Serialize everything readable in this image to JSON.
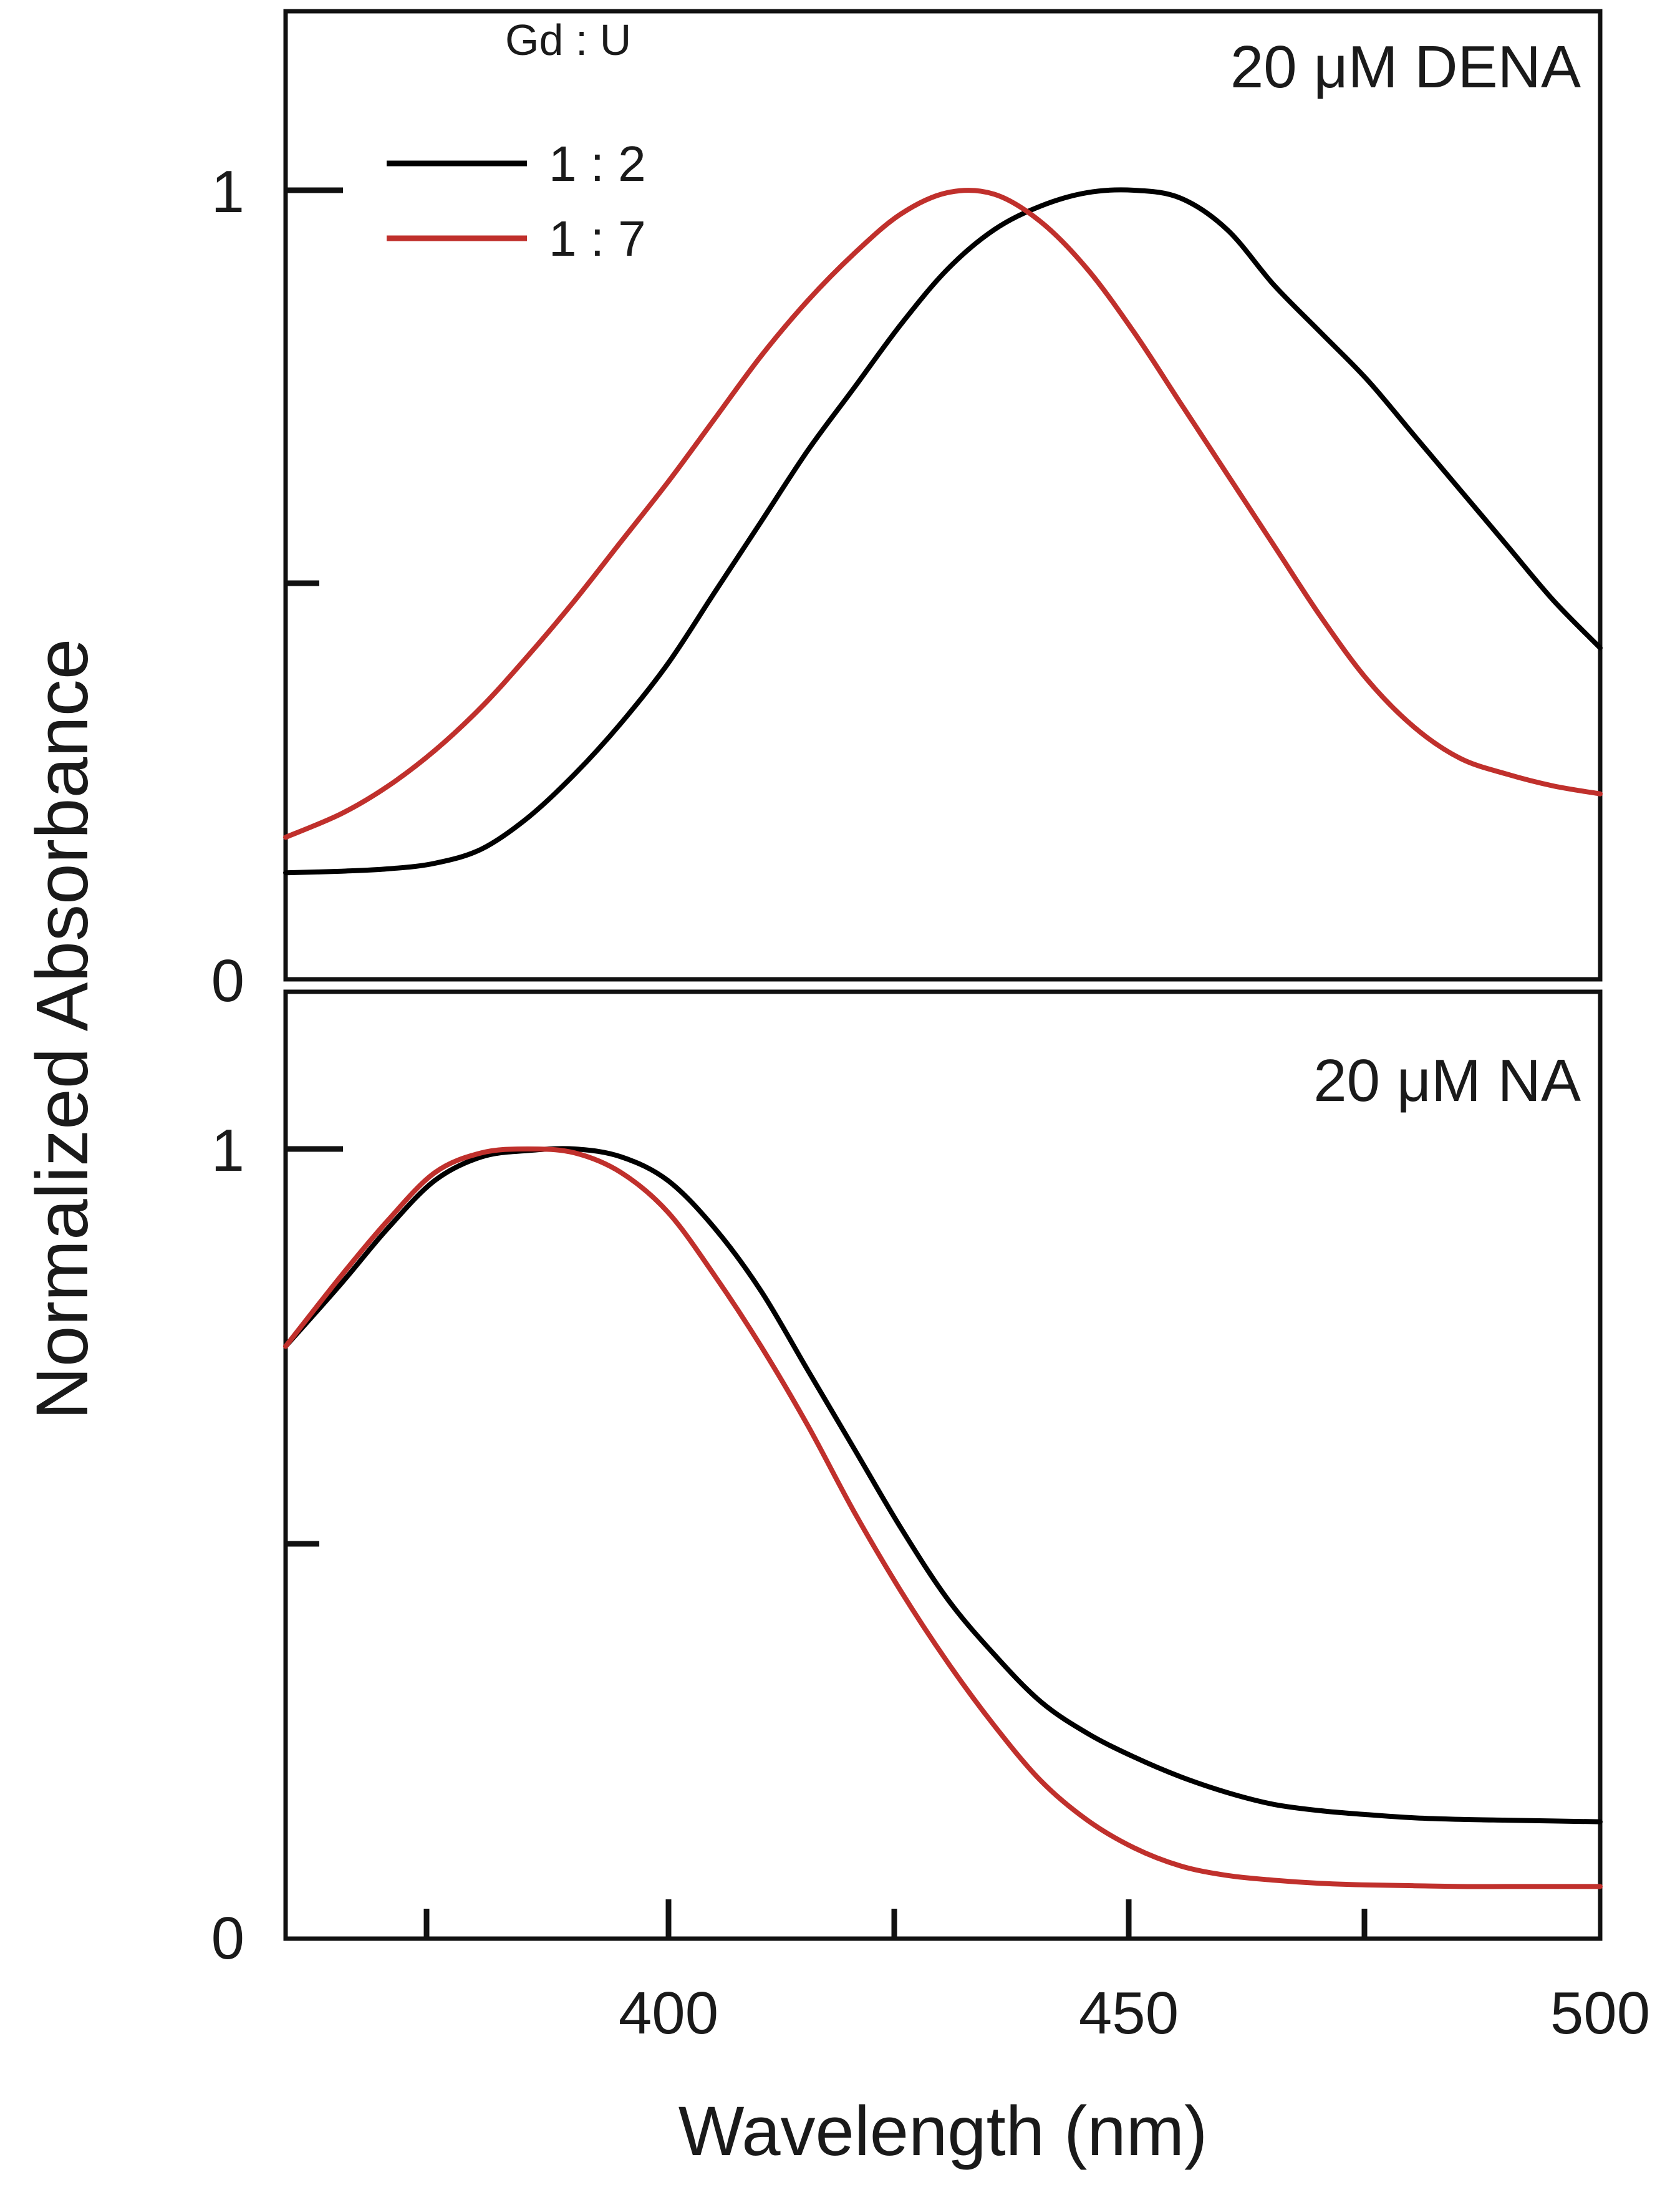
{
  "chart_data": [
    {
      "type": "line",
      "panel": "top",
      "annotation": "20 μM DENA",
      "legend_title": "Gd : U",
      "legend_position": "top-left",
      "xlim": [
        359,
        500
      ],
      "ylim": [
        0,
        1.2
      ],
      "yticks": [
        0,
        0.5,
        1
      ],
      "ytick_labels": [
        "0",
        "",
        "1"
      ],
      "x": [
        359,
        365,
        370,
        375,
        380,
        385,
        390,
        395,
        400,
        405,
        410,
        415,
        420,
        425,
        430,
        435,
        440,
        445,
        450,
        455,
        460,
        465,
        470,
        475,
        480,
        485,
        490,
        495,
        500
      ],
      "series": [
        {
          "name": "1 : 2",
          "color": "#000000",
          "values": [
            0.135,
            0.137,
            0.14,
            0.147,
            0.165,
            0.205,
            0.26,
            0.325,
            0.4,
            0.49,
            0.58,
            0.67,
            0.75,
            0.83,
            0.9,
            0.95,
            0.98,
            0.997,
            1.0,
            0.99,
            0.95,
            0.88,
            0.82,
            0.76,
            0.69,
            0.62,
            0.55,
            0.48,
            0.42
          ]
        },
        {
          "name": "1 : 7",
          "color": "#c0302c",
          "values": [
            0.18,
            0.21,
            0.245,
            0.29,
            0.345,
            0.41,
            0.48,
            0.555,
            0.63,
            0.71,
            0.79,
            0.86,
            0.92,
            0.97,
            0.997,
            0.995,
            0.96,
            0.9,
            0.82,
            0.73,
            0.64,
            0.55,
            0.46,
            0.38,
            0.32,
            0.28,
            0.26,
            0.245,
            0.235
          ]
        }
      ]
    },
    {
      "type": "line",
      "panel": "bottom",
      "annotation": "20 μM NA",
      "xlim": [
        359,
        500
      ],
      "ylim": [
        0,
        1.2
      ],
      "yticks": [
        0,
        0.5,
        1
      ],
      "ytick_labels": [
        "0",
        "",
        "1"
      ],
      "xticks": [
        375,
        400,
        425,
        450,
        475,
        500
      ],
      "xtick_labels": [
        "",
        "400",
        "",
        "450",
        "",
        "500"
      ],
      "xlabel": "Wavelength (nm)",
      "x": [
        359,
        365,
        370,
        375,
        380,
        385,
        390,
        395,
        400,
        405,
        410,
        415,
        420,
        425,
        430,
        435,
        440,
        445,
        450,
        455,
        460,
        465,
        470,
        475,
        480,
        485,
        490,
        495,
        500
      ],
      "series": [
        {
          "name": "1 : 2",
          "color": "#000000",
          "values": [
            0.75,
            0.83,
            0.9,
            0.96,
            0.99,
            0.998,
            1.0,
            0.99,
            0.96,
            0.9,
            0.82,
            0.72,
            0.62,
            0.52,
            0.43,
            0.36,
            0.3,
            0.26,
            0.23,
            0.205,
            0.185,
            0.17,
            0.162,
            0.157,
            0.153,
            0.151,
            0.15,
            0.149,
            0.148
          ]
        },
        {
          "name": "1 : 7",
          "color": "#c0302c",
          "values": [
            0.75,
            0.84,
            0.91,
            0.97,
            0.995,
            1.0,
            0.995,
            0.97,
            0.92,
            0.84,
            0.75,
            0.65,
            0.54,
            0.44,
            0.35,
            0.27,
            0.2,
            0.15,
            0.115,
            0.092,
            0.08,
            0.074,
            0.07,
            0.068,
            0.067,
            0.066,
            0.066,
            0.066,
            0.066
          ]
        }
      ]
    }
  ],
  "figure": {
    "ylabel": "Normalized Absorbance",
    "top_panel": {
      "annotation": "20 μM DENA",
      "legend_title": "Gd : U",
      "legend_entries": [
        "1 : 2",
        "1 : 7"
      ],
      "y_tick_0": "0",
      "y_tick_1": "1"
    },
    "bottom_panel": {
      "annotation": "20 μM NA",
      "y_tick_0": "0",
      "y_tick_1": "1",
      "x_tick_400": "400",
      "x_tick_450": "450",
      "x_tick_500": "500",
      "xlabel": "Wavelength (nm)"
    }
  }
}
